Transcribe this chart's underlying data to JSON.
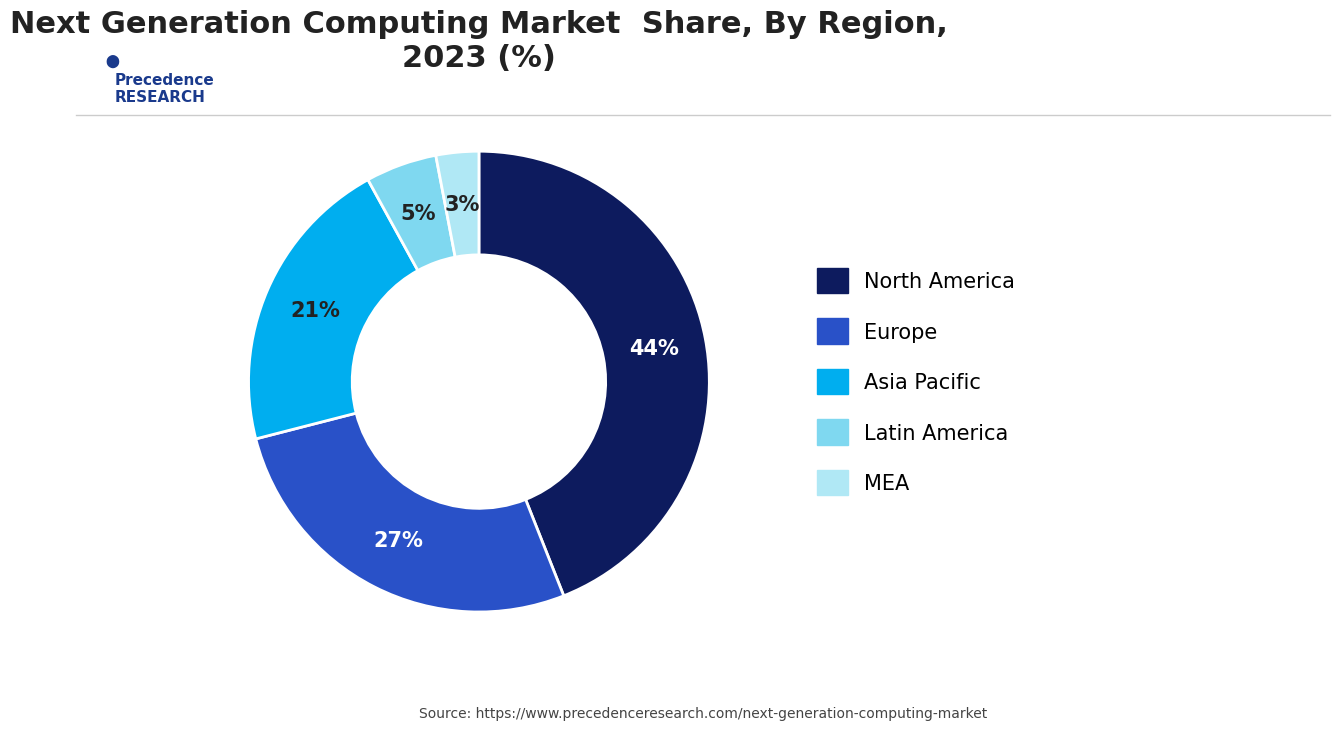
{
  "title": "Next Generation Computing Market  Share, By Region,\n2023 (%)",
  "labels": [
    "North America",
    "Europe",
    "Asia Pacific",
    "Latin America",
    "MEA"
  ],
  "values": [
    44,
    27,
    21,
    5,
    3
  ],
  "colors": [
    "#0d1b5e",
    "#2951c8",
    "#00aeef",
    "#7fd8f0",
    "#b0e8f5"
  ],
  "pct_labels": [
    "44%",
    "27%",
    "21%",
    "5%",
    "3%"
  ],
  "source_text": "Source: https://www.precedenceresearch.com/next-generation-computing-market",
  "background_color": "#ffffff",
  "title_fontsize": 22,
  "legend_fontsize": 15,
  "pct_fontsize": 15
}
